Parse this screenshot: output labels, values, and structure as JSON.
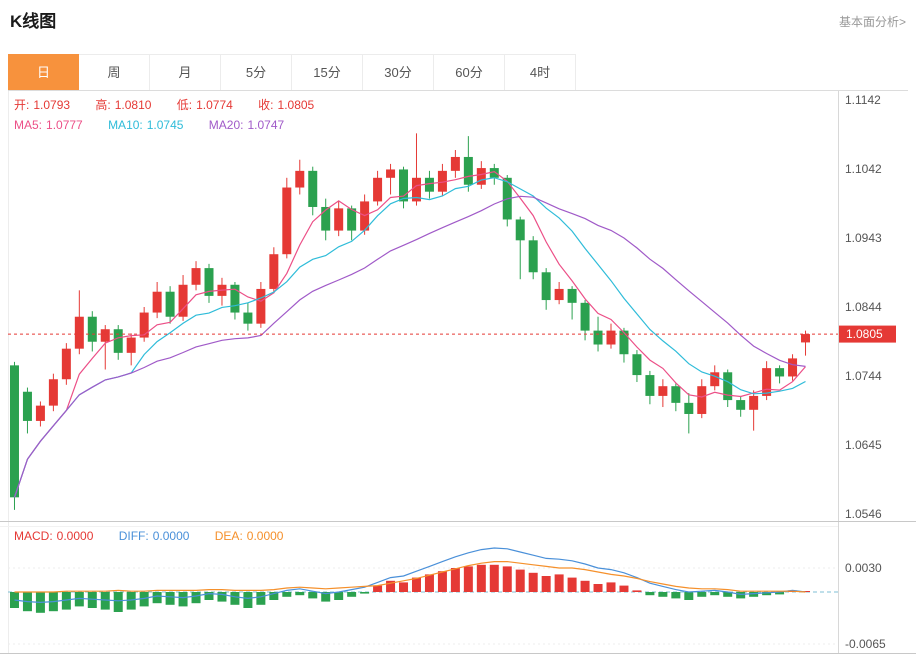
{
  "header": {
    "title": "K线图",
    "link_label": "基本面分析>"
  },
  "tabs": {
    "active_color": "#f7923d",
    "items": [
      {
        "key": "day",
        "label": "日",
        "active": true
      },
      {
        "key": "week",
        "label": "周"
      },
      {
        "key": "month",
        "label": "月"
      },
      {
        "key": "5min",
        "label": "5分"
      },
      {
        "key": "15min",
        "label": "15分"
      },
      {
        "key": "30min",
        "label": "30分"
      },
      {
        "key": "60min",
        "label": "60分"
      },
      {
        "key": "4hour",
        "label": "4时"
      }
    ]
  },
  "legend": {
    "open_label": "开:",
    "open_value": "1.0793",
    "high_label": "高:",
    "high_value": "1.0810",
    "low_label": "低:",
    "low_value": "1.0774",
    "close_label": "收:",
    "close_value": "1.0805",
    "ma5_label": "MA5:",
    "ma5_value": "1.0777",
    "ma10_label": "MA10:",
    "ma10_value": "1.0745",
    "ma20_label": "MA20:",
    "ma20_value": "1.0747",
    "macd_label": "MACD:",
    "macd_value": "0.0000",
    "diff_label": "DIFF:",
    "diff_value": "0.0000",
    "dea_label": "DEA:",
    "dea_value": "0.0000"
  },
  "chart_data": {
    "type": "candlestick",
    "title": "K线图",
    "interval": "日",
    "colors": {
      "up": "#e53935",
      "down": "#2ba14f",
      "ma5": "#ec4f87",
      "ma10": "#2fbcd9",
      "ma20": "#a05ac8",
      "diff": "#4a90d9",
      "dea": "#f5902b",
      "price_line": "#e53935",
      "zero_line": "#7fbfd4",
      "grid": "#ededed"
    },
    "y_axis": {
      "max": 1.1142,
      "min": 1.0546,
      "ticks": [
        "1.1142",
        "1.1042",
        "1.0943",
        "1.0844",
        "1.0744",
        "1.0645",
        "1.0546"
      ]
    },
    "x_axis": {
      "labels_visible": false
    },
    "last_close": 1.0805,
    "price_tag": "1.0805",
    "ohlc_display": {
      "open": 1.0793,
      "high": 1.081,
      "low": 1.0774,
      "close": 1.0805
    },
    "ma_lines": [
      {
        "name": "MA5",
        "period": 5,
        "value": 1.0777,
        "color": "#ec4f87"
      },
      {
        "name": "MA10",
        "period": 10,
        "value": 1.0745,
        "color": "#2fbcd9"
      },
      {
        "name": "MA20",
        "period": 20,
        "value": 1.0747,
        "color": "#a05ac8"
      }
    ],
    "candles": [
      [
        1.076,
        1.0765,
        1.0552,
        1.057
      ],
      [
        1.0722,
        1.0728,
        1.0662,
        1.068
      ],
      [
        1.068,
        1.0708,
        1.0672,
        1.0702
      ],
      [
        1.0702,
        1.0748,
        1.0694,
        1.074
      ],
      [
        1.074,
        1.0792,
        1.0732,
        1.0784
      ],
      [
        1.0784,
        1.0868,
        1.0776,
        1.083
      ],
      [
        1.083,
        1.0838,
        1.078,
        1.0794
      ],
      [
        1.0794,
        1.0818,
        1.0754,
        1.0812
      ],
      [
        1.0812,
        1.0818,
        1.0768,
        1.0778
      ],
      [
        1.0778,
        1.0806,
        1.076,
        1.08
      ],
      [
        1.08,
        1.0844,
        1.0794,
        1.0836
      ],
      [
        1.0836,
        1.088,
        1.0828,
        1.0866
      ],
      [
        1.0866,
        1.0874,
        1.082,
        1.083
      ],
      [
        1.083,
        1.089,
        1.0824,
        1.0876
      ],
      [
        1.0876,
        1.091,
        1.0868,
        1.09
      ],
      [
        1.09,
        1.0906,
        1.085,
        1.086
      ],
      [
        1.086,
        1.0886,
        1.0846,
        1.0876
      ],
      [
        1.0876,
        1.088,
        1.0826,
        1.0836
      ],
      [
        1.0836,
        1.085,
        1.081,
        1.082
      ],
      [
        1.082,
        1.088,
        1.0814,
        1.087
      ],
      [
        1.087,
        1.093,
        1.0864,
        1.092
      ],
      [
        1.092,
        1.103,
        1.0914,
        1.1016
      ],
      [
        1.1016,
        1.1056,
        1.1006,
        1.104
      ],
      [
        1.104,
        1.1046,
        1.0976,
        1.0988
      ],
      [
        1.0988,
        1.1,
        1.094,
        1.0954
      ],
      [
        1.0954,
        1.0996,
        1.0946,
        1.0986
      ],
      [
        1.0986,
        1.099,
        1.094,
        1.0954
      ],
      [
        1.0954,
        1.1006,
        1.0948,
        1.0996
      ],
      [
        1.0996,
        1.104,
        1.099,
        1.103
      ],
      [
        1.103,
        1.105,
        1.1006,
        1.1042
      ],
      [
        1.1042,
        1.1046,
        1.0986,
        1.0996
      ],
      [
        1.0996,
        1.1094,
        1.099,
        1.103
      ],
      [
        1.103,
        1.104,
        1.1,
        1.101
      ],
      [
        1.101,
        1.105,
        1.1004,
        1.104
      ],
      [
        1.104,
        1.107,
        1.103,
        1.106
      ],
      [
        1.106,
        1.109,
        1.101,
        1.102
      ],
      [
        1.102,
        1.1054,
        1.1014,
        1.1044
      ],
      [
        1.1044,
        1.105,
        1.102,
        1.103
      ],
      [
        1.103,
        1.1034,
        1.096,
        1.097
      ],
      [
        1.097,
        1.0974,
        1.0884,
        1.094
      ],
      [
        1.094,
        1.0946,
        1.0884,
        1.0894
      ],
      [
        1.0894,
        1.09,
        1.084,
        1.0854
      ],
      [
        1.0854,
        1.088,
        1.0848,
        1.087
      ],
      [
        1.087,
        1.0874,
        1.0826,
        1.085
      ],
      [
        1.085,
        1.0854,
        1.0796,
        1.081
      ],
      [
        1.081,
        1.083,
        1.078,
        1.079
      ],
      [
        1.079,
        1.082,
        1.0784,
        1.081
      ],
      [
        1.081,
        1.0814,
        1.0764,
        1.0776
      ],
      [
        1.0776,
        1.0782,
        1.0736,
        1.0746
      ],
      [
        1.0746,
        1.0752,
        1.0704,
        1.0716
      ],
      [
        1.0716,
        1.074,
        1.07,
        1.073
      ],
      [
        1.073,
        1.0734,
        1.0694,
        1.0706
      ],
      [
        1.0706,
        1.072,
        1.0662,
        1.069
      ],
      [
        1.069,
        1.074,
        1.0684,
        1.073
      ],
      [
        1.073,
        1.076,
        1.0724,
        1.075
      ],
      [
        1.075,
        1.0754,
        1.07,
        1.071
      ],
      [
        1.071,
        1.0716,
        1.0686,
        1.0696
      ],
      [
        1.0696,
        1.0724,
        1.0666,
        1.0716
      ],
      [
        1.0716,
        1.0766,
        1.071,
        1.0756
      ],
      [
        1.0756,
        1.076,
        1.0734,
        1.0744
      ],
      [
        1.0744,
        1.0776,
        1.0738,
        1.077
      ],
      [
        1.0793,
        1.081,
        1.0774,
        1.0805
      ]
    ],
    "macd": {
      "labels": {
        "macd": 0.0,
        "diff": 0.0,
        "dea": 0.0
      },
      "y_ticks": [
        {
          "label": "0.0030",
          "value": 0.003
        },
        {
          "label": "-0.0065",
          "value": -0.0065
        }
      ],
      "hist": [
        -0.002,
        -0.0024,
        -0.0026,
        -0.0024,
        -0.0022,
        -0.0018,
        -0.002,
        -0.0022,
        -0.0025,
        -0.0022,
        -0.0018,
        -0.0014,
        -0.0016,
        -0.0018,
        -0.0014,
        -0.001,
        -0.0012,
        -0.0016,
        -0.002,
        -0.0016,
        -0.001,
        -0.0006,
        -0.0004,
        -0.0008,
        -0.0012,
        -0.001,
        -0.0006,
        -0.0002,
        0.0008,
        0.0014,
        0.0012,
        0.0018,
        0.0022,
        0.0026,
        0.003,
        0.0032,
        0.0034,
        0.0034,
        0.0032,
        0.0028,
        0.0024,
        0.002,
        0.0022,
        0.0018,
        0.0014,
        0.001,
        0.0012,
        0.0008,
        0.0002,
        -0.0004,
        -0.0006,
        -0.0008,
        -0.001,
        -0.0006,
        -0.0004,
        -0.0006,
        -0.0008,
        -0.0006,
        -0.0004,
        -0.0003,
        0.0002,
        0.0001
      ],
      "diff": [
        -0.001,
        -0.0012,
        -0.0013,
        -0.0012,
        -0.001,
        -0.0008,
        -0.0009,
        -0.001,
        -0.0011,
        -0.001,
        -0.0008,
        -0.0005,
        -0.0006,
        -0.0007,
        -0.0005,
        -0.0002,
        -0.0003,
        -0.0006,
        -0.0008,
        -0.0006,
        -0.0002,
        0.0002,
        0.0004,
        0.0001,
        -0.0002,
        0.0,
        0.0003,
        0.0006,
        0.0012,
        0.0018,
        0.002,
        0.0026,
        0.0032,
        0.0038,
        0.0044,
        0.0049,
        0.0053,
        0.0055,
        0.0054,
        0.005,
        0.0046,
        0.0042,
        0.0041,
        0.0039,
        0.0035,
        0.003,
        0.0028,
        0.0024,
        0.0018,
        0.0011,
        0.0007,
        0.0003,
        0.0,
        0.0001,
        0.0002,
        0.0,
        -0.0003,
        -0.0002,
        -0.0001,
        0.0,
        0.0002,
        0.0
      ],
      "dea": [
        0.0,
        0.0,
        0.0,
        0.0,
        0.0001,
        0.0001,
        0.0001,
        0.0001,
        0.0002,
        0.0001,
        0.0001,
        0.0002,
        0.0002,
        0.0002,
        0.0002,
        0.0003,
        0.0003,
        0.0002,
        0.0002,
        0.0002,
        0.0003,
        0.0005,
        0.0006,
        0.0005,
        0.0004,
        0.0005,
        0.0006,
        0.0007,
        0.0008,
        0.0011,
        0.0014,
        0.0017,
        0.0021,
        0.0025,
        0.0029,
        0.0033,
        0.0036,
        0.0038,
        0.0038,
        0.0036,
        0.0034,
        0.0032,
        0.003,
        0.003,
        0.0028,
        0.0025,
        0.0022,
        0.002,
        0.0017,
        0.0013,
        0.001,
        0.0007,
        0.0005,
        0.0004,
        0.0004,
        0.0003,
        0.0001,
        0.0001,
        0.0001,
        0.0001,
        0.0001,
        0.0
      ]
    }
  }
}
